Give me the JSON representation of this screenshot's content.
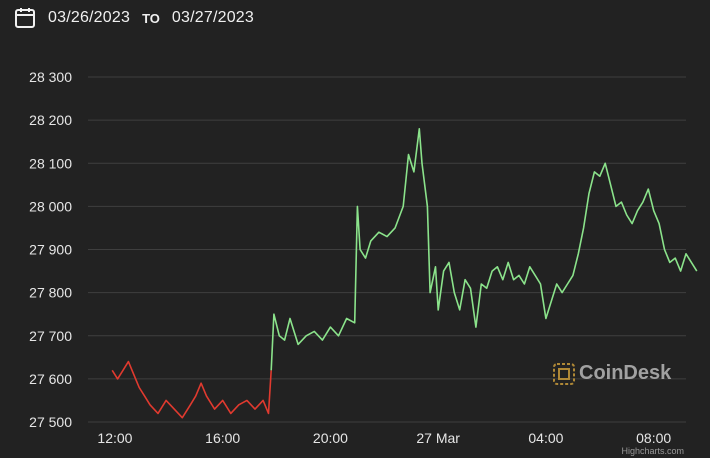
{
  "date_range": {
    "start": "03/26/2023",
    "separator": "TO",
    "end": "03/27/2023"
  },
  "watermark": "CoinDesk",
  "credits": "Highcharts.com",
  "colors": {
    "up": "#8be38b",
    "down": "#e03a2f",
    "grid": "#3f3f3f",
    "axis_text": "#e6e6e6",
    "background": "#222222"
  },
  "chart_data": {
    "type": "line",
    "xlabel": "",
    "ylabel": "",
    "ylim": [
      27500,
      28300
    ],
    "xlim_hours": [
      11.0,
      33.2
    ],
    "y_ticks": [
      "27 500",
      "27 600",
      "27 700",
      "27 800",
      "27 900",
      "28 000",
      "28 100",
      "28 200",
      "28 300"
    ],
    "y_tick_values": [
      27500,
      27600,
      27700,
      27800,
      27900,
      28000,
      28100,
      28200,
      28300
    ],
    "x_ticks": [
      "12:00",
      "16:00",
      "20:00",
      "27 Mar",
      "04:00",
      "08:00"
    ],
    "x_tick_hours": [
      12,
      16,
      20,
      24,
      28,
      32
    ],
    "grid": true,
    "legend": "none",
    "x_unit": "hours since 2023-03-26 00:00",
    "series": [
      {
        "color": "#e03a2f",
        "x": [
          11.9,
          12.1,
          12.3,
          12.5,
          12.7,
          12.9,
          13.1,
          13.3,
          13.6,
          13.9,
          14.2,
          14.5,
          14.8,
          15.0,
          15.2,
          15.4,
          15.7,
          16.0,
          16.3,
          16.6,
          16.9,
          17.2,
          17.5,
          17.7,
          17.8
        ],
        "y": [
          27620,
          27600,
          27620,
          27640,
          27610,
          27580,
          27560,
          27540,
          27520,
          27550,
          27530,
          27510,
          27540,
          27560,
          27590,
          27560,
          27530,
          27550,
          27520,
          27540,
          27550,
          27530,
          27550,
          27520,
          27620
        ]
      },
      {
        "color": "#8be38b",
        "x": [
          17.8,
          17.9,
          18.1,
          18.3,
          18.5,
          18.8,
          19.1,
          19.4,
          19.7,
          20.0,
          20.3,
          20.6,
          20.9,
          21.0,
          21.1,
          21.3,
          21.5,
          21.8,
          22.1,
          22.4,
          22.7,
          22.9,
          23.1,
          23.3,
          23.4,
          23.6,
          23.7,
          23.9,
          24.0,
          24.2,
          24.4,
          24.6,
          24.8,
          25.0,
          25.2,
          25.4,
          25.6,
          25.8,
          26.0,
          26.2,
          26.4,
          26.6,
          26.8,
          27.0,
          27.2,
          27.4,
          27.6,
          27.8,
          28.0,
          28.2,
          28.4,
          28.6,
          28.8,
          29.0,
          29.2,
          29.4,
          29.6,
          29.8,
          30.0,
          30.2,
          30.4,
          30.6,
          30.8,
          31.0,
          31.2,
          31.4,
          31.6,
          31.8,
          32.0,
          32.2,
          32.4,
          32.6,
          32.8,
          33.0,
          33.2,
          33.4,
          33.6
        ],
        "y": [
          27620,
          27750,
          27700,
          27690,
          27740,
          27680,
          27700,
          27710,
          27690,
          27720,
          27700,
          27740,
          27730,
          28000,
          27900,
          27880,
          27920,
          27940,
          27930,
          27950,
          28000,
          28120,
          28080,
          28180,
          28100,
          28000,
          27800,
          27860,
          27760,
          27850,
          27870,
          27800,
          27760,
          27830,
          27810,
          27720,
          27820,
          27810,
          27850,
          27860,
          27830,
          27870,
          27830,
          27840,
          27820,
          27860,
          27840,
          27820,
          27740,
          27780,
          27820,
          27800,
          27820,
          27840,
          27890,
          27950,
          28030,
          28080,
          28070,
          28100,
          28050,
          28000,
          28010,
          27980,
          27960,
          27990,
          28010,
          28040,
          27990,
          27960,
          27900,
          27870,
          27880,
          27850,
          27890,
          27870,
          27850
        ]
      }
    ]
  }
}
